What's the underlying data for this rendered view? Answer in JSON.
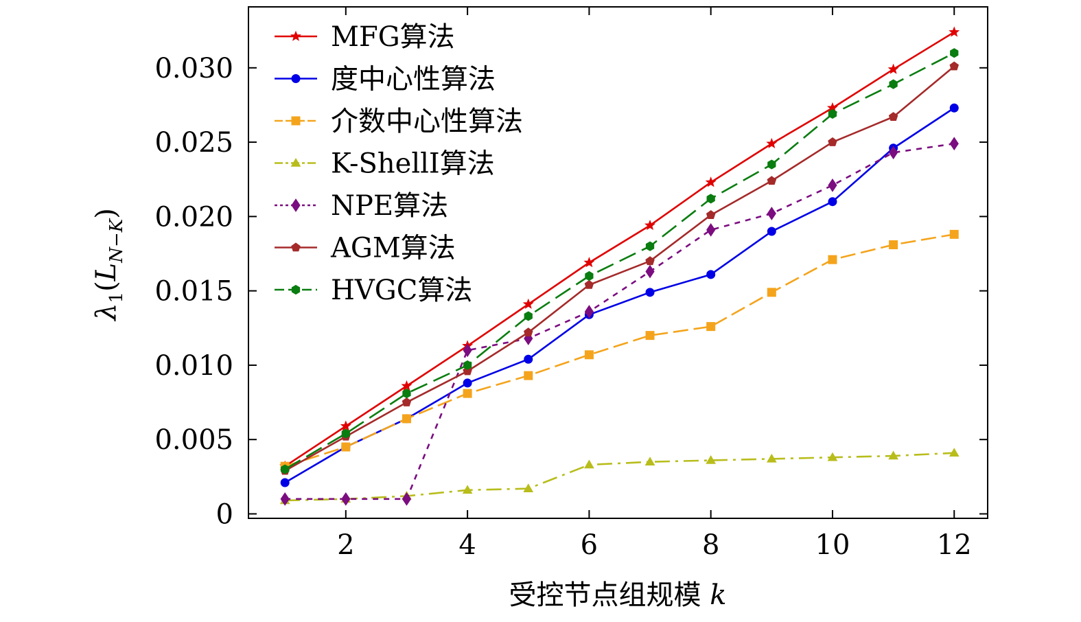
{
  "chart_data": {
    "type": "line",
    "title": "",
    "xlabel": "受控节点组规模",
    "xlabel_var": "k",
    "ylabel": "λ",
    "ylabel_sub": "1",
    "ylabel_arg": "L",
    "ylabel_arg_sub": "N−K",
    "xlim": [
      0.4,
      12.55
    ],
    "ylim": [
      -0.0003,
      0.0341
    ],
    "x_ticks": [
      2,
      4,
      6,
      8,
      10,
      12
    ],
    "x_tick_labels": [
      "2",
      "4",
      "6",
      "8",
      "10",
      "12"
    ],
    "y_ticks": [
      0,
      0.005,
      0.01,
      0.015,
      0.02,
      0.025,
      0.03
    ],
    "y_tick_labels": [
      "0",
      "0.005",
      "0.010",
      "0.015",
      "0.020",
      "0.025",
      "0.030"
    ],
    "x": [
      1,
      2,
      3,
      4,
      5,
      6,
      7,
      8,
      9,
      10,
      11,
      12
    ],
    "legend_position": "top-left",
    "grid": false,
    "series": [
      {
        "name": "MFG算法",
        "color": "#e00000",
        "dash": "",
        "marker": "star",
        "values": [
          0.0032,
          0.0059,
          0.0086,
          0.0113,
          0.0141,
          0.0169,
          0.0194,
          0.0223,
          0.0249,
          0.0273,
          0.0299,
          0.0324
        ]
      },
      {
        "name": "度中心性算法",
        "color": "#0000e6",
        "dash": "",
        "marker": "circle",
        "values": [
          0.0021,
          0.0045,
          0.0064,
          0.0088,
          0.0104,
          0.0134,
          0.0149,
          0.0161,
          0.019,
          0.021,
          0.0246,
          0.0273
        ]
      },
      {
        "name": "介数中心性算法",
        "color": "#f4a41c",
        "dash": "22,8",
        "marker": "square",
        "values": [
          0.0032,
          0.0045,
          0.0064,
          0.0081,
          0.0093,
          0.0107,
          0.012,
          0.0126,
          0.0149,
          0.0171,
          0.0181,
          0.0188
        ]
      },
      {
        "name": "K-ShellI算法",
        "color": "#b8bd1b",
        "dash": "22,8,4,8",
        "marker": "triangle",
        "values": [
          0.0009,
          0.001,
          0.0012,
          0.0016,
          0.0017,
          0.0033,
          0.0035,
          0.0036,
          0.0037,
          0.0038,
          0.0039,
          0.0041
        ]
      },
      {
        "name": "NPE算法",
        "color": "#7b0d80",
        "dash": "8,8",
        "marker": "diamond",
        "values": [
          0.001,
          0.001,
          0.001,
          0.011,
          0.0118,
          0.0136,
          0.0163,
          0.0191,
          0.0202,
          0.0221,
          0.0243,
          0.0249
        ]
      },
      {
        "name": "AGM算法",
        "color": "#a52a2a",
        "dash": "",
        "marker": "pentagon",
        "values": [
          0.0029,
          0.0052,
          0.0075,
          0.0096,
          0.0122,
          0.0154,
          0.017,
          0.0201,
          0.0224,
          0.025,
          0.0267,
          0.0301
        ]
      },
      {
        "name": "HVGC算法",
        "color": "#0a7d10",
        "dash": "26,10",
        "marker": "hexagon",
        "values": [
          0.003,
          0.0054,
          0.0081,
          0.01,
          0.0133,
          0.016,
          0.018,
          0.0212,
          0.0235,
          0.0269,
          0.0289,
          0.031
        ]
      }
    ]
  }
}
